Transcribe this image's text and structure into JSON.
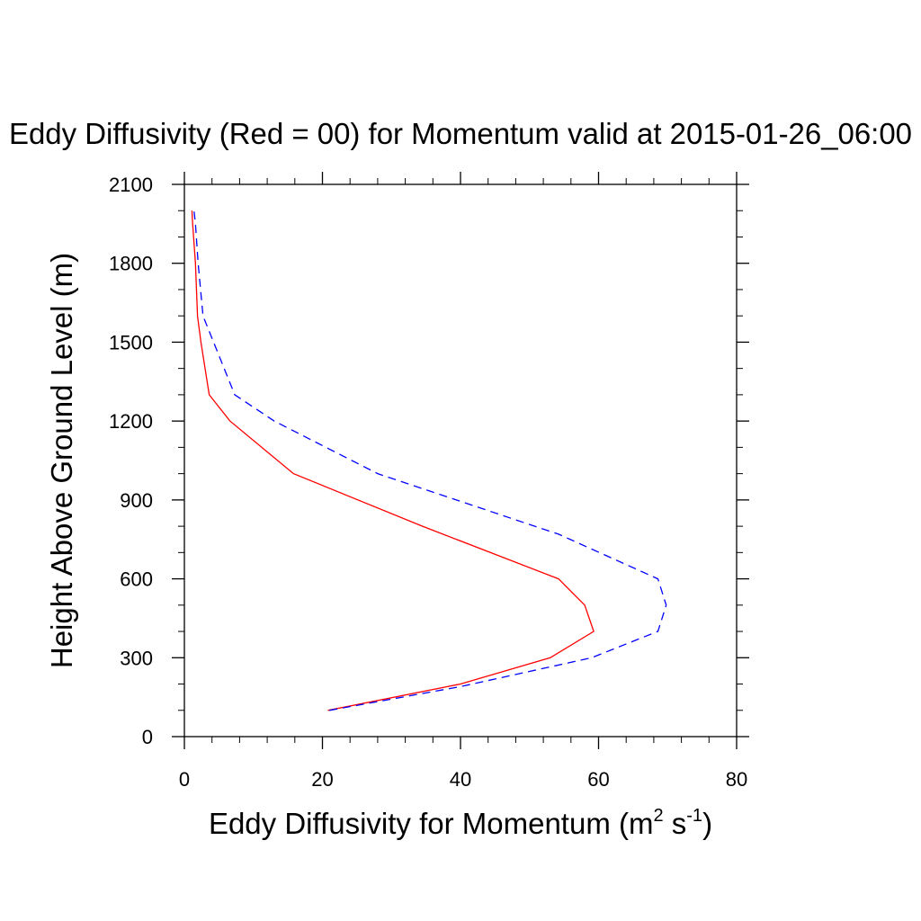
{
  "chart_data": {
    "type": "line",
    "title": "Eddy Diffusivity (Red = 00) for Momentum valid at 2015-01-26_06:00",
    "xlabel_main": "Eddy Diffusivity for Momentum (m",
    "xlabel_sup1": "2",
    "xlabel_mid": " s",
    "xlabel_sup2": "-1",
    "xlabel_end": ")",
    "ylabel": "Height Above Ground Level (m)",
    "xlim": [
      0,
      80
    ],
    "ylim": [
      0,
      2100
    ],
    "xticks": [
      "0",
      "20",
      "40",
      "60",
      "80"
    ],
    "yticks": [
      "0",
      "300",
      "600",
      "900",
      "1200",
      "1500",
      "1800",
      "2100"
    ],
    "grid": false,
    "series": [
      {
        "color": "#ff0000",
        "style": "solid",
        "points": [
          [
            20.8,
            100
          ],
          [
            40.0,
            200
          ],
          [
            53.0,
            300
          ],
          [
            59.3,
            400
          ],
          [
            58.0,
            500
          ],
          [
            54.2,
            600
          ],
          [
            34.5,
            800
          ],
          [
            15.8,
            1000
          ],
          [
            6.6,
            1200
          ],
          [
            3.6,
            1300
          ],
          [
            2.4,
            1500
          ],
          [
            1.9,
            1600
          ],
          [
            1.6,
            1800
          ],
          [
            1.2,
            1950
          ],
          [
            1.1,
            2000
          ]
        ]
      },
      {
        "color": "#0000ff",
        "style": "dashed",
        "points": [
          [
            21.0,
            100
          ],
          [
            40.0,
            190
          ],
          [
            59.0,
            300
          ],
          [
            68.6,
            400
          ],
          [
            69.8,
            500
          ],
          [
            68.6,
            600
          ],
          [
            54.2,
            770
          ],
          [
            28.0,
            1000
          ],
          [
            13.0,
            1200
          ],
          [
            7.3,
            1300
          ],
          [
            2.7,
            1600
          ],
          [
            2.0,
            1800
          ],
          [
            1.6,
            1950
          ],
          [
            1.4,
            2000
          ]
        ]
      }
    ]
  }
}
